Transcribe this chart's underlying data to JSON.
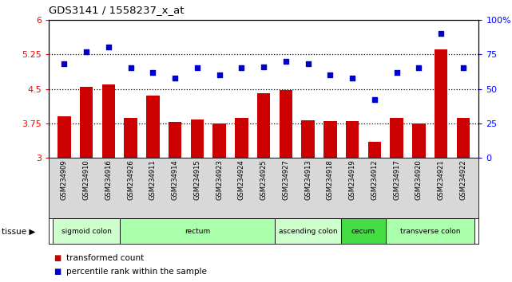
{
  "title": "GDS3141 / 1558237_x_at",
  "samples": [
    "GSM234909",
    "GSM234910",
    "GSM234916",
    "GSM234926",
    "GSM234911",
    "GSM234914",
    "GSM234915",
    "GSM234923",
    "GSM234924",
    "GSM234925",
    "GSM234927",
    "GSM234913",
    "GSM234918",
    "GSM234919",
    "GSM234912",
    "GSM234917",
    "GSM234920",
    "GSM234921",
    "GSM234922"
  ],
  "bar_values": [
    3.9,
    4.55,
    4.6,
    3.87,
    4.35,
    3.78,
    3.83,
    3.75,
    3.87,
    4.4,
    4.47,
    3.82,
    3.8,
    3.8,
    3.35,
    3.87,
    3.75,
    5.35,
    3.87
  ],
  "dot_values": [
    68,
    77,
    80,
    65,
    62,
    58,
    65,
    60,
    65,
    66,
    70,
    68,
    60,
    58,
    42,
    62,
    65,
    90,
    65
  ],
  "bar_color": "#cc0000",
  "dot_color": "#0000cc",
  "ylim_left": [
    3.0,
    6.0
  ],
  "ylim_right": [
    0,
    100
  ],
  "yticks_left": [
    3.0,
    3.75,
    4.5,
    5.25,
    6.0
  ],
  "yticks_right": [
    0,
    25,
    50,
    75,
    100
  ],
  "ytick_labels_right": [
    "0",
    "25",
    "50",
    "75",
    "100%"
  ],
  "hlines": [
    3.75,
    4.5,
    5.25
  ],
  "tissue_groups": [
    {
      "label": "sigmoid colon",
      "start": 0,
      "end": 3,
      "color": "#ccffcc"
    },
    {
      "label": "rectum",
      "start": 3,
      "end": 10,
      "color": "#aaffaa"
    },
    {
      "label": "ascending colon",
      "start": 10,
      "end": 13,
      "color": "#ccffcc"
    },
    {
      "label": "cecum",
      "start": 13,
      "end": 15,
      "color": "#44dd44"
    },
    {
      "label": "transverse colon",
      "start": 15,
      "end": 19,
      "color": "#aaffaa"
    }
  ],
  "tissue_label": "tissue",
  "legend_bar": "transformed count",
  "legend_dot": "percentile rank within the sample",
  "bg_color": "#d8d8d8",
  "plot_bg": "#ffffff"
}
